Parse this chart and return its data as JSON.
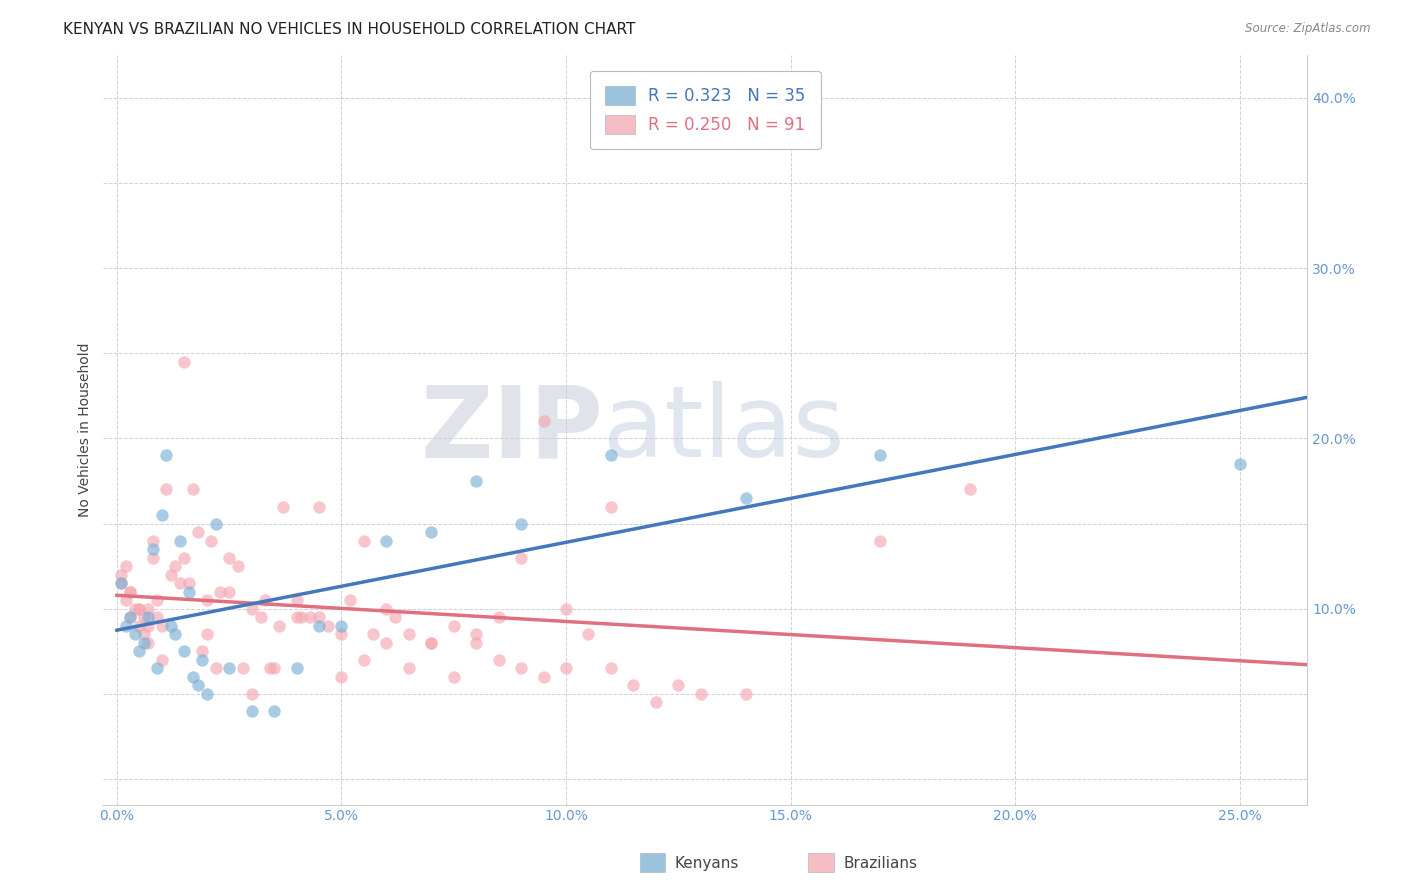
{
  "title": "KENYAN VS BRAZILIAN NO VEHICLES IN HOUSEHOLD CORRELATION CHART",
  "source": "Source: ZipAtlas.com",
  "kenyan_R": 0.323,
  "kenyan_N": 35,
  "brazilian_R": 0.25,
  "brazilian_N": 91,
  "kenyan_color": "#7BAFD4",
  "brazilian_color": "#F4A7B0",
  "kenyan_line_color": "#4477BB",
  "brazilian_line_color": "#E07080",
  "kenyan_x": [
    0.001,
    0.002,
    0.003,
    0.004,
    0.005,
    0.006,
    0.007,
    0.008,
    0.009,
    0.01,
    0.011,
    0.012,
    0.013,
    0.014,
    0.015,
    0.016,
    0.017,
    0.018,
    0.019,
    0.02,
    0.022,
    0.025,
    0.03,
    0.035,
    0.04,
    0.045,
    0.05,
    0.06,
    0.07,
    0.08,
    0.09,
    0.11,
    0.14,
    0.17,
    0.25
  ],
  "kenyan_y": [
    0.115,
    0.09,
    0.095,
    0.085,
    0.075,
    0.08,
    0.095,
    0.135,
    0.065,
    0.155,
    0.19,
    0.09,
    0.085,
    0.14,
    0.075,
    0.11,
    0.06,
    0.055,
    0.07,
    0.05,
    0.15,
    0.065,
    0.04,
    0.04,
    0.065,
    0.09,
    0.09,
    0.14,
    0.145,
    0.175,
    0.15,
    0.19,
    0.165,
    0.19,
    0.185
  ],
  "brazilian_x": [
    0.001,
    0.002,
    0.003,
    0.003,
    0.004,
    0.005,
    0.005,
    0.006,
    0.006,
    0.007,
    0.007,
    0.008,
    0.008,
    0.009,
    0.009,
    0.01,
    0.01,
    0.011,
    0.012,
    0.013,
    0.014,
    0.015,
    0.016,
    0.017,
    0.018,
    0.019,
    0.02,
    0.021,
    0.022,
    0.023,
    0.025,
    0.027,
    0.028,
    0.03,
    0.032,
    0.033,
    0.034,
    0.036,
    0.037,
    0.04,
    0.041,
    0.043,
    0.045,
    0.047,
    0.05,
    0.052,
    0.055,
    0.057,
    0.06,
    0.062,
    0.065,
    0.07,
    0.075,
    0.08,
    0.085,
    0.09,
    0.095,
    0.1,
    0.105,
    0.11,
    0.115,
    0.12,
    0.125,
    0.13,
    0.14,
    0.015,
    0.02,
    0.025,
    0.03,
    0.035,
    0.04,
    0.045,
    0.05,
    0.055,
    0.06,
    0.065,
    0.07,
    0.075,
    0.08,
    0.085,
    0.09,
    0.095,
    0.1,
    0.11,
    0.17,
    0.19,
    0.001,
    0.002,
    0.003,
    0.005,
    0.007
  ],
  "brazilian_y": [
    0.115,
    0.105,
    0.11,
    0.095,
    0.1,
    0.1,
    0.09,
    0.095,
    0.085,
    0.1,
    0.09,
    0.14,
    0.13,
    0.105,
    0.095,
    0.09,
    0.07,
    0.17,
    0.12,
    0.125,
    0.115,
    0.13,
    0.115,
    0.17,
    0.145,
    0.075,
    0.085,
    0.14,
    0.065,
    0.11,
    0.13,
    0.125,
    0.065,
    0.1,
    0.095,
    0.105,
    0.065,
    0.09,
    0.16,
    0.105,
    0.095,
    0.095,
    0.16,
    0.09,
    0.085,
    0.105,
    0.14,
    0.085,
    0.1,
    0.095,
    0.085,
    0.08,
    0.09,
    0.085,
    0.095,
    0.13,
    0.21,
    0.1,
    0.085,
    0.065,
    0.055,
    0.045,
    0.055,
    0.05,
    0.05,
    0.245,
    0.105,
    0.11,
    0.05,
    0.065,
    0.095,
    0.095,
    0.06,
    0.07,
    0.08,
    0.065,
    0.08,
    0.06,
    0.08,
    0.07,
    0.065,
    0.06,
    0.065,
    0.16,
    0.14,
    0.17,
    0.12,
    0.125,
    0.11,
    0.1,
    0.08
  ],
  "xmin": -0.003,
  "xmax": 0.265,
  "ymin": -0.015,
  "ymax": 0.425,
  "xtick_positions": [
    0.0,
    0.05,
    0.1,
    0.15,
    0.2,
    0.25
  ],
  "xtick_labels": [
    "0.0%",
    "5.0%",
    "10.0%",
    "15.0%",
    "20.0%",
    "25.0%"
  ],
  "ytick_positions": [
    0.0,
    0.05,
    0.1,
    0.15,
    0.2,
    0.25,
    0.3,
    0.35,
    0.4
  ],
  "ytick_labels": [
    "",
    "",
    "10.0%",
    "",
    "20.0%",
    "",
    "30.0%",
    "",
    "40.0%"
  ],
  "tick_color": "#6699CC",
  "xlabel_bottom_labels": [
    "0.0%",
    "",
    "",
    "",
    "",
    "25.0%"
  ],
  "line_width": 2.5,
  "marker_size": 80,
  "background_color": "#FFFFFF",
  "grid_color": "#CCCCCC",
  "title_fontsize": 11,
  "axis_label_fontsize": 10,
  "tick_fontsize": 10
}
